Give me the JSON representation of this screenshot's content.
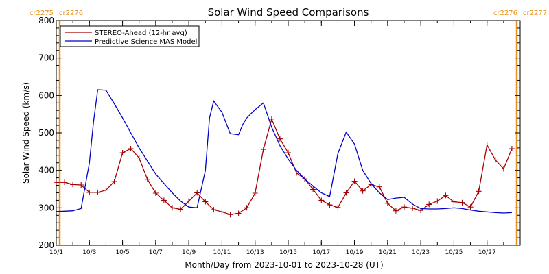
{
  "chart_data": {
    "type": "line",
    "title": "Solar Wind Speed Comparisons",
    "xlabel": "Month/Day from 2023-10-01 to 2023-10-28 (UT)",
    "ylabel": "Solar Wind Speed (km/s)",
    "xlim": [
      "2023-10-01",
      "2023-10-28"
    ],
    "ylim": [
      200,
      800
    ],
    "y_ticks": [
      200,
      300,
      400,
      500,
      600,
      700,
      800
    ],
    "x_ticks": [
      {
        "date": "2023-10-01",
        "label": "10/1"
      },
      {
        "date": "2023-10-03",
        "label": "10/3"
      },
      {
        "date": "2023-10-05",
        "label": "10/5"
      },
      {
        "date": "2023-10-07",
        "label": "10/7"
      },
      {
        "date": "2023-10-09",
        "label": "10/9"
      },
      {
        "date": "2023-10-11",
        "label": "10/11"
      },
      {
        "date": "2023-10-13",
        "label": "10/13"
      },
      {
        "date": "2023-10-15",
        "label": "10/15"
      },
      {
        "date": "2023-10-17",
        "label": "10/17"
      },
      {
        "date": "2023-10-19",
        "label": "10/19"
      },
      {
        "date": "2023-10-21",
        "label": "10/21"
      },
      {
        "date": "2023-10-23",
        "label": "10/23"
      },
      {
        "date": "2023-10-25",
        "label": "10/25"
      },
      {
        "date": "2023-10-27",
        "label": "10/27"
      }
    ],
    "grid": false,
    "legend_position": "top-left",
    "carrington_markers": [
      {
        "date": "2023-10-01",
        "labels": [
          "cr2275",
          "cr2276"
        ],
        "color": "#e8931e"
      },
      {
        "date": "2023-10-28",
        "labels": [
          "cr2276",
          "cr2277"
        ],
        "color": "#e8931e"
      }
    ],
    "series": [
      {
        "name": "STEREO-Ahead (12-hr avg)",
        "color": "#a50000",
        "marker": "plus",
        "points": [
          [
            "2023-10-01 00:00",
            368
          ],
          [
            "2023-10-01 12:00",
            368
          ],
          [
            "2023-10-02 00:00",
            362
          ],
          [
            "2023-10-02 12:00",
            361
          ],
          [
            "2023-10-03 00:00",
            341
          ],
          [
            "2023-10-03 12:00",
            341
          ],
          [
            "2023-10-04 00:00",
            347
          ],
          [
            "2023-10-04 12:00",
            370
          ],
          [
            "2023-10-05 00:00",
            447
          ],
          [
            "2023-10-05 12:00",
            458
          ],
          [
            "2023-10-06 00:00",
            433
          ],
          [
            "2023-10-06 12:00",
            376
          ],
          [
            "2023-10-07 00:00",
            339
          ],
          [
            "2023-10-07 12:00",
            320
          ],
          [
            "2023-10-08 00:00",
            300
          ],
          [
            "2023-10-08 12:00",
            296
          ],
          [
            "2023-10-09 00:00",
            318
          ],
          [
            "2023-10-09 12:00",
            340
          ],
          [
            "2023-10-10 00:00",
            316
          ],
          [
            "2023-10-10 12:00",
            295
          ],
          [
            "2023-10-11 00:00",
            289
          ],
          [
            "2023-10-11 12:00",
            282
          ],
          [
            "2023-10-12 00:00",
            285
          ],
          [
            "2023-10-12 12:00",
            300
          ],
          [
            "2023-10-13 00:00",
            339
          ],
          [
            "2023-10-13 12:00",
            456
          ],
          [
            "2023-10-14 00:00",
            537
          ],
          [
            "2023-10-14 12:00",
            484
          ],
          [
            "2023-10-15 00:00",
            447
          ],
          [
            "2023-10-15 12:00",
            393
          ],
          [
            "2023-10-16 00:00",
            377
          ],
          [
            "2023-10-16 12:00",
            349
          ],
          [
            "2023-10-17 00:00",
            320
          ],
          [
            "2023-10-17 12:00",
            308
          ],
          [
            "2023-10-18 00:00",
            301
          ],
          [
            "2023-10-18 12:00",
            340
          ],
          [
            "2023-10-19 00:00",
            371
          ],
          [
            "2023-10-19 12:00",
            345
          ],
          [
            "2023-10-20 00:00",
            362
          ],
          [
            "2023-10-20 12:00",
            356
          ],
          [
            "2023-10-21 00:00",
            312
          ],
          [
            "2023-10-21 12:00",
            292
          ],
          [
            "2023-10-22 00:00",
            302
          ],
          [
            "2023-10-22 12:00",
            299
          ],
          [
            "2023-10-23 00:00",
            293
          ],
          [
            "2023-10-23 12:00",
            309
          ],
          [
            "2023-10-24 00:00",
            318
          ],
          [
            "2023-10-24 12:00",
            333
          ],
          [
            "2023-10-25 00:00",
            316
          ],
          [
            "2023-10-25 12:00",
            314
          ],
          [
            "2023-10-26 00:00",
            302
          ],
          [
            "2023-10-26 12:00",
            344
          ],
          [
            "2023-10-27 00:00",
            468
          ],
          [
            "2023-10-27 12:00",
            428
          ],
          [
            "2023-10-28 00:00",
            404
          ],
          [
            "2023-10-28 12:00",
            458
          ]
        ]
      },
      {
        "name": "Predictive Science MAS Model",
        "color": "#0000c8",
        "marker": "none",
        "points": [
          [
            "2023-10-01 00:00",
            290
          ],
          [
            "2023-10-01 12:00",
            291
          ],
          [
            "2023-10-02 00:00",
            292
          ],
          [
            "2023-10-02 12:00",
            298
          ],
          [
            "2023-10-03 00:00",
            420
          ],
          [
            "2023-10-03 06:00",
            530
          ],
          [
            "2023-10-03 12:00",
            615
          ],
          [
            "2023-10-04 00:00",
            614
          ],
          [
            "2023-10-04 12:00",
            578
          ],
          [
            "2023-10-05 00:00",
            540
          ],
          [
            "2023-10-05 12:00",
            500
          ],
          [
            "2023-10-06 00:00",
            460
          ],
          [
            "2023-10-06 12:00",
            425
          ],
          [
            "2023-10-07 00:00",
            390
          ],
          [
            "2023-10-07 12:00",
            365
          ],
          [
            "2023-10-08 00:00",
            340
          ],
          [
            "2023-10-08 12:00",
            318
          ],
          [
            "2023-10-09 00:00",
            302
          ],
          [
            "2023-10-09 12:00",
            300
          ],
          [
            "2023-10-10 00:00",
            400
          ],
          [
            "2023-10-10 06:00",
            540
          ],
          [
            "2023-10-10 12:00",
            585
          ],
          [
            "2023-10-11 00:00",
            555
          ],
          [
            "2023-10-11 12:00",
            498
          ],
          [
            "2023-10-12 00:00",
            495
          ],
          [
            "2023-10-12 06:00",
            522
          ],
          [
            "2023-10-12 12:00",
            540
          ],
          [
            "2023-10-13 00:00",
            562
          ],
          [
            "2023-10-13 12:00",
            580
          ],
          [
            "2023-10-14 00:00",
            515
          ],
          [
            "2023-10-14 12:00",
            466
          ],
          [
            "2023-10-15 00:00",
            430
          ],
          [
            "2023-10-15 12:00",
            400
          ],
          [
            "2023-10-16 00:00",
            377
          ],
          [
            "2023-10-16 12:00",
            358
          ],
          [
            "2023-10-17 00:00",
            340
          ],
          [
            "2023-10-17 12:00",
            330
          ],
          [
            "2023-10-18 00:00",
            445
          ],
          [
            "2023-10-18 12:00",
            502
          ],
          [
            "2023-10-19 00:00",
            470
          ],
          [
            "2023-10-19 12:00",
            400
          ],
          [
            "2023-10-20 00:00",
            365
          ],
          [
            "2023-10-20 12:00",
            340
          ],
          [
            "2023-10-21 00:00",
            322
          ],
          [
            "2023-10-21 12:00",
            326
          ],
          [
            "2023-10-22 00:00",
            328
          ],
          [
            "2023-10-22 12:00",
            310
          ],
          [
            "2023-10-23 00:00",
            298
          ],
          [
            "2023-10-23 12:00",
            297
          ],
          [
            "2023-10-24 00:00",
            297
          ],
          [
            "2023-10-24 12:00",
            298
          ],
          [
            "2023-10-25 00:00",
            300
          ],
          [
            "2023-10-25 12:00",
            298
          ],
          [
            "2023-10-26 00:00",
            294
          ],
          [
            "2023-10-26 12:00",
            291
          ],
          [
            "2023-10-27 00:00",
            289
          ],
          [
            "2023-10-27 12:00",
            287
          ],
          [
            "2023-10-28 00:00",
            286
          ],
          [
            "2023-10-28 12:00",
            287
          ]
        ]
      }
    ]
  }
}
